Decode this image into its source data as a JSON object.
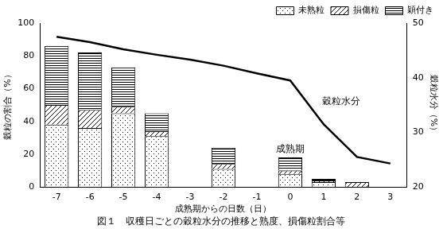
{
  "chart_data": {
    "type": "bar",
    "title": "図１　収穫日ごとの穀粒水分の推移と熟度、損傷粒割合等",
    "x_label": "成熟期からの日数（日）",
    "y_label": "穀粒の割合（%）",
    "y2_label": "穀粒水分（%）",
    "categories": [
      "-7",
      "-6",
      "-5",
      "-4",
      "-3",
      "-2",
      "-1",
      "0",
      "1",
      "2",
      "3"
    ],
    "series": [
      {
        "name": "未熟粒",
        "color": "#000000",
        "values": [
          38,
          36,
          45,
          31,
          null,
          11,
          null,
          8,
          3,
          0,
          null
        ]
      },
      {
        "name": "損傷粒",
        "color": "#000000",
        "values": [
          12,
          11,
          4,
          3,
          null,
          3,
          null,
          2,
          1,
          3,
          null
        ]
      },
      {
        "name": "穎付き",
        "color": "#000000",
        "values": [
          36,
          35,
          24,
          11,
          null,
          10,
          null,
          8,
          1,
          0,
          null
        ]
      },
      {
        "name": "穀粒水分",
        "type": "line",
        "axis": "y2",
        "color": "#000000",
        "values": [
          47.5,
          46.5,
          45.2,
          44.2,
          43.3,
          42.2,
          40.8,
          39.5,
          31.5,
          25.5,
          24.3
        ]
      }
    ],
    "ylim": [
      0,
      100
    ],
    "yticks": [
      0,
      20,
      40,
      60,
      80,
      100
    ],
    "y2lim": [
      20,
      50
    ],
    "y2ticks": [
      20,
      30,
      40,
      50
    ],
    "stacked": true,
    "grid": false,
    "legend": "top-right",
    "annotations": [
      "成熟期"
    ]
  }
}
